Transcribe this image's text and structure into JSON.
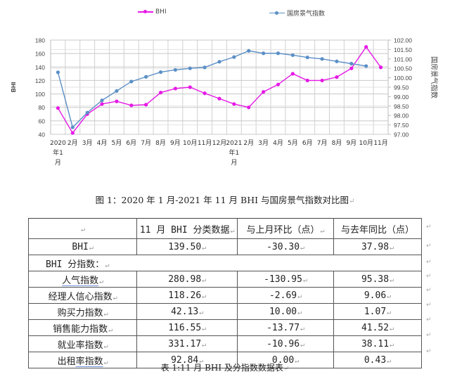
{
  "legend": {
    "series1": {
      "label": "BHI",
      "color": "#e619e6"
    },
    "series2": {
      "label": "国房景气指数",
      "color": "#5b8fc7"
    }
  },
  "chart_data": {
    "type": "line",
    "title": "",
    "categories": [
      "2020年1月",
      "2月",
      "3月",
      "4月",
      "5月",
      "6月",
      "7月",
      "8月",
      "9月",
      "10月",
      "11月",
      "12月",
      "2021年1月",
      "2月",
      "3月",
      "4月",
      "5月",
      "6月",
      "7月",
      "8月",
      "9月",
      "10月",
      "11月"
    ],
    "x_tick_labels": [
      [
        "2020",
        "年1",
        "月"
      ],
      [
        "2月"
      ],
      [
        "3月"
      ],
      [
        "4月"
      ],
      [
        "5月"
      ],
      [
        "6月"
      ],
      [
        "7月"
      ],
      [
        "8月"
      ],
      [
        "9月"
      ],
      [
        "10月"
      ],
      [
        "11月"
      ],
      [
        "12月"
      ],
      [
        "2021",
        "年1",
        "月"
      ],
      [
        "2月"
      ],
      [
        "3月"
      ],
      [
        "4月"
      ],
      [
        "5月"
      ],
      [
        "6月"
      ],
      [
        "7月"
      ],
      [
        "8月"
      ],
      [
        "9月"
      ],
      [
        "10月"
      ],
      [
        "11月"
      ]
    ],
    "series": [
      {
        "name": "BHI",
        "axis": "left",
        "color": "#e619e6",
        "values": [
          79,
          42,
          70,
          85,
          89,
          83,
          84,
          102,
          108,
          110,
          101,
          93,
          85,
          80,
          103,
          114,
          130,
          120,
          120,
          125,
          138,
          169.8,
          139.5
        ]
      },
      {
        "name": "国房景气指数",
        "axis": "right",
        "color": "#5b8fc7",
        "values": [
          100.29,
          97.37,
          98.15,
          98.8,
          99.3,
          99.8,
          100.05,
          100.3,
          100.42,
          100.5,
          100.55,
          100.85,
          101.1,
          101.43,
          101.3,
          101.3,
          101.2,
          101.08,
          101.0,
          100.87,
          100.75,
          100.62,
          null
        ]
      }
    ],
    "ylabel": "BHI",
    "ylim": [
      40,
      180
    ],
    "yticks": [
      "180",
      "160",
      "140",
      "120",
      "100",
      "80",
      "60",
      "40"
    ],
    "y2label": "国房景气指数",
    "y2lim": [
      97.0,
      102.0
    ],
    "y2ticks": [
      "102.00",
      "101.50",
      "101.00",
      "100.50",
      "100.00",
      "99.50",
      "99.00",
      "98.50",
      "98.00",
      "97.50",
      "97.00"
    ],
    "grid": true,
    "legend_position": "top"
  },
  "figure_caption": "图 1：2020 年 1 月-2021 年 11 月 BHI 与国房景气指数对比图",
  "table": {
    "headers": [
      "",
      "11 月 BHI 分类数据",
      "与上月环比（点）",
      "与去年同比（点）"
    ],
    "bhi_row": {
      "label": "BHI",
      "value": "139.50",
      "mom": "-30.30",
      "yoy": "37.98"
    },
    "sub_header": "BHI 分指数：",
    "rows": [
      {
        "label": "人气指数",
        "value": "280.98",
        "mom": "-130.95",
        "yoy": "95.38"
      },
      {
        "label": "经理人信心指数",
        "value": "118.26",
        "mom": "-2.69",
        "yoy": "9.06"
      },
      {
        "label": "购买力指数",
        "value": "42.13",
        "mom": "10.00",
        "yoy": "1.07"
      },
      {
        "label": "销售能力指数",
        "value": "116.55",
        "mom": "-13.77",
        "yoy": "41.52"
      },
      {
        "label": "就业率指数",
        "value": "331.17",
        "mom": "-10.96",
        "yoy": "38.11"
      },
      {
        "label": "出租率指数",
        "value": "92.84",
        "mom": "0.00",
        "yoy": "0.43"
      }
    ]
  },
  "table_caption": "表 1:11 月 BHI 及分指数数据表",
  "paragraph_mark": "↵"
}
